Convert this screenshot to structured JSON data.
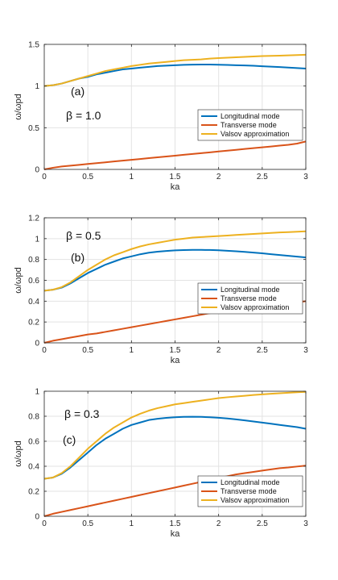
{
  "chart_data": [
    {
      "type": "line",
      "panel_label": "(a)",
      "beta_label": "β = 1.0",
      "xlabel": "ka",
      "ylabel": "ω/ωpd",
      "xlim": [
        0,
        3
      ],
      "ylim": [
        0,
        1.5
      ],
      "xticks": [
        "0",
        "0.5",
        "1",
        "1.5",
        "2",
        "2.5",
        "3"
      ],
      "yticks": [
        "0",
        "0.5",
        "1",
        "1.5"
      ],
      "grid": true,
      "legend_position": "lower-right",
      "x": [
        0,
        0.1,
        0.2,
        0.3,
        0.4,
        0.5,
        0.6,
        0.7,
        0.8,
        0.9,
        1.0,
        1.1,
        1.2,
        1.3,
        1.4,
        1.5,
        1.6,
        1.7,
        1.8,
        1.9,
        2.0,
        2.1,
        2.2,
        2.3,
        2.4,
        2.5,
        2.6,
        2.7,
        2.8,
        2.9,
        3.0
      ],
      "series": [
        {
          "name": "Longitudinal mode",
          "color": "#0072BD",
          "values": [
            1.0,
            1.01,
            1.03,
            1.06,
            1.09,
            1.11,
            1.14,
            1.16,
            1.18,
            1.2,
            1.21,
            1.22,
            1.23,
            1.24,
            1.245,
            1.25,
            1.255,
            1.257,
            1.258,
            1.258,
            1.256,
            1.253,
            1.25,
            1.247,
            1.243,
            1.238,
            1.233,
            1.228,
            1.222,
            1.216,
            1.21
          ]
        },
        {
          "name": "Transverse mode",
          "color": "#D95319",
          "values": [
            0.0,
            0.02,
            0.035,
            0.045,
            0.055,
            0.065,
            0.075,
            0.085,
            0.095,
            0.105,
            0.115,
            0.125,
            0.135,
            0.145,
            0.155,
            0.165,
            0.175,
            0.185,
            0.195,
            0.205,
            0.215,
            0.225,
            0.235,
            0.245,
            0.255,
            0.265,
            0.275,
            0.285,
            0.295,
            0.31,
            0.335
          ]
        },
        {
          "name": "Valsov approximation",
          "color": "#EDB120",
          "values": [
            1.0,
            1.01,
            1.03,
            1.06,
            1.09,
            1.12,
            1.15,
            1.18,
            1.2,
            1.22,
            1.24,
            1.255,
            1.27,
            1.28,
            1.29,
            1.3,
            1.31,
            1.315,
            1.32,
            1.33,
            1.335,
            1.34,
            1.345,
            1.35,
            1.355,
            1.36,
            1.362,
            1.365,
            1.368,
            1.372,
            1.375
          ]
        }
      ]
    },
    {
      "type": "line",
      "panel_label": "(b)",
      "beta_label": "β = 0.5",
      "xlabel": "ka",
      "ylabel": "ω/ωpd",
      "xlim": [
        0,
        3
      ],
      "ylim": [
        0,
        1.2
      ],
      "xticks": [
        "0",
        "0.5",
        "1",
        "1.5",
        "2",
        "2.5",
        "3"
      ],
      "yticks": [
        "0",
        "0.2",
        "0.4",
        "0.6",
        "0.8",
        "1",
        "1.2"
      ],
      "grid": true,
      "legend_position": "lower-right",
      "x": [
        0,
        0.1,
        0.2,
        0.3,
        0.4,
        0.5,
        0.6,
        0.7,
        0.8,
        0.9,
        1.0,
        1.1,
        1.2,
        1.3,
        1.4,
        1.5,
        1.6,
        1.7,
        1.8,
        1.9,
        2.0,
        2.1,
        2.2,
        2.3,
        2.4,
        2.5,
        2.6,
        2.7,
        2.8,
        2.9,
        3.0
      ],
      "series": [
        {
          "name": "Longitudinal mode",
          "color": "#0072BD",
          "values": [
            0.5,
            0.51,
            0.53,
            0.57,
            0.62,
            0.67,
            0.71,
            0.75,
            0.78,
            0.81,
            0.83,
            0.85,
            0.865,
            0.875,
            0.882,
            0.887,
            0.89,
            0.892,
            0.892,
            0.891,
            0.888,
            0.884,
            0.879,
            0.873,
            0.866,
            0.859,
            0.851,
            0.843,
            0.835,
            0.827,
            0.82
          ]
        },
        {
          "name": "Transverse mode",
          "color": "#D95319",
          "values": [
            0.0,
            0.02,
            0.035,
            0.05,
            0.065,
            0.08,
            0.09,
            0.105,
            0.12,
            0.135,
            0.15,
            0.165,
            0.18,
            0.195,
            0.21,
            0.225,
            0.24,
            0.255,
            0.27,
            0.285,
            0.3,
            0.31,
            0.32,
            0.33,
            0.34,
            0.35,
            0.36,
            0.37,
            0.38,
            0.39,
            0.4
          ]
        },
        {
          "name": "Valsov approximation",
          "color": "#EDB120",
          "values": [
            0.5,
            0.51,
            0.535,
            0.58,
            0.64,
            0.7,
            0.75,
            0.8,
            0.84,
            0.87,
            0.9,
            0.925,
            0.945,
            0.96,
            0.975,
            0.99,
            1.0,
            1.01,
            1.015,
            1.02,
            1.025,
            1.03,
            1.035,
            1.04,
            1.045,
            1.05,
            1.055,
            1.06,
            1.063,
            1.066,
            1.07
          ]
        }
      ]
    },
    {
      "type": "line",
      "panel_label": "(c)",
      "beta_label": "β = 0.3",
      "xlabel": "ka",
      "ylabel": "ω/ωpd",
      "xlim": [
        0,
        3
      ],
      "ylim": [
        0,
        1
      ],
      "xticks": [
        "0",
        "0.5",
        "1",
        "1.5",
        "2",
        "2.5",
        "3"
      ],
      "yticks": [
        "0",
        "0.2",
        "0.4",
        "0.6",
        "0.8",
        "1"
      ],
      "grid": true,
      "legend_position": "lower-right",
      "x": [
        0,
        0.1,
        0.2,
        0.3,
        0.4,
        0.5,
        0.6,
        0.7,
        0.8,
        0.9,
        1.0,
        1.1,
        1.2,
        1.3,
        1.4,
        1.5,
        1.6,
        1.7,
        1.8,
        1.9,
        2.0,
        2.1,
        2.2,
        2.3,
        2.4,
        2.5,
        2.6,
        2.7,
        2.8,
        2.9,
        3.0
      ],
      "series": [
        {
          "name": "Longitudinal mode",
          "color": "#0072BD",
          "values": [
            0.3,
            0.31,
            0.34,
            0.39,
            0.45,
            0.51,
            0.57,
            0.62,
            0.66,
            0.7,
            0.73,
            0.75,
            0.77,
            0.78,
            0.787,
            0.792,
            0.795,
            0.796,
            0.795,
            0.792,
            0.788,
            0.782,
            0.775,
            0.767,
            0.758,
            0.749,
            0.74,
            0.731,
            0.722,
            0.713,
            0.7
          ]
        },
        {
          "name": "Transverse mode",
          "color": "#D95319",
          "values": [
            0.0,
            0.02,
            0.035,
            0.05,
            0.065,
            0.08,
            0.095,
            0.11,
            0.125,
            0.14,
            0.155,
            0.17,
            0.185,
            0.2,
            0.215,
            0.23,
            0.245,
            0.26,
            0.275,
            0.29,
            0.305,
            0.32,
            0.335,
            0.345,
            0.355,
            0.365,
            0.375,
            0.385,
            0.39,
            0.398,
            0.405
          ]
        },
        {
          "name": "Valsov approximation",
          "color": "#EDB120",
          "values": [
            0.3,
            0.31,
            0.345,
            0.4,
            0.47,
            0.54,
            0.6,
            0.66,
            0.71,
            0.75,
            0.79,
            0.82,
            0.845,
            0.865,
            0.88,
            0.895,
            0.905,
            0.915,
            0.925,
            0.935,
            0.945,
            0.952,
            0.958,
            0.964,
            0.97,
            0.975,
            0.98,
            0.984,
            0.988,
            0.992,
            0.995
          ]
        }
      ]
    }
  ]
}
